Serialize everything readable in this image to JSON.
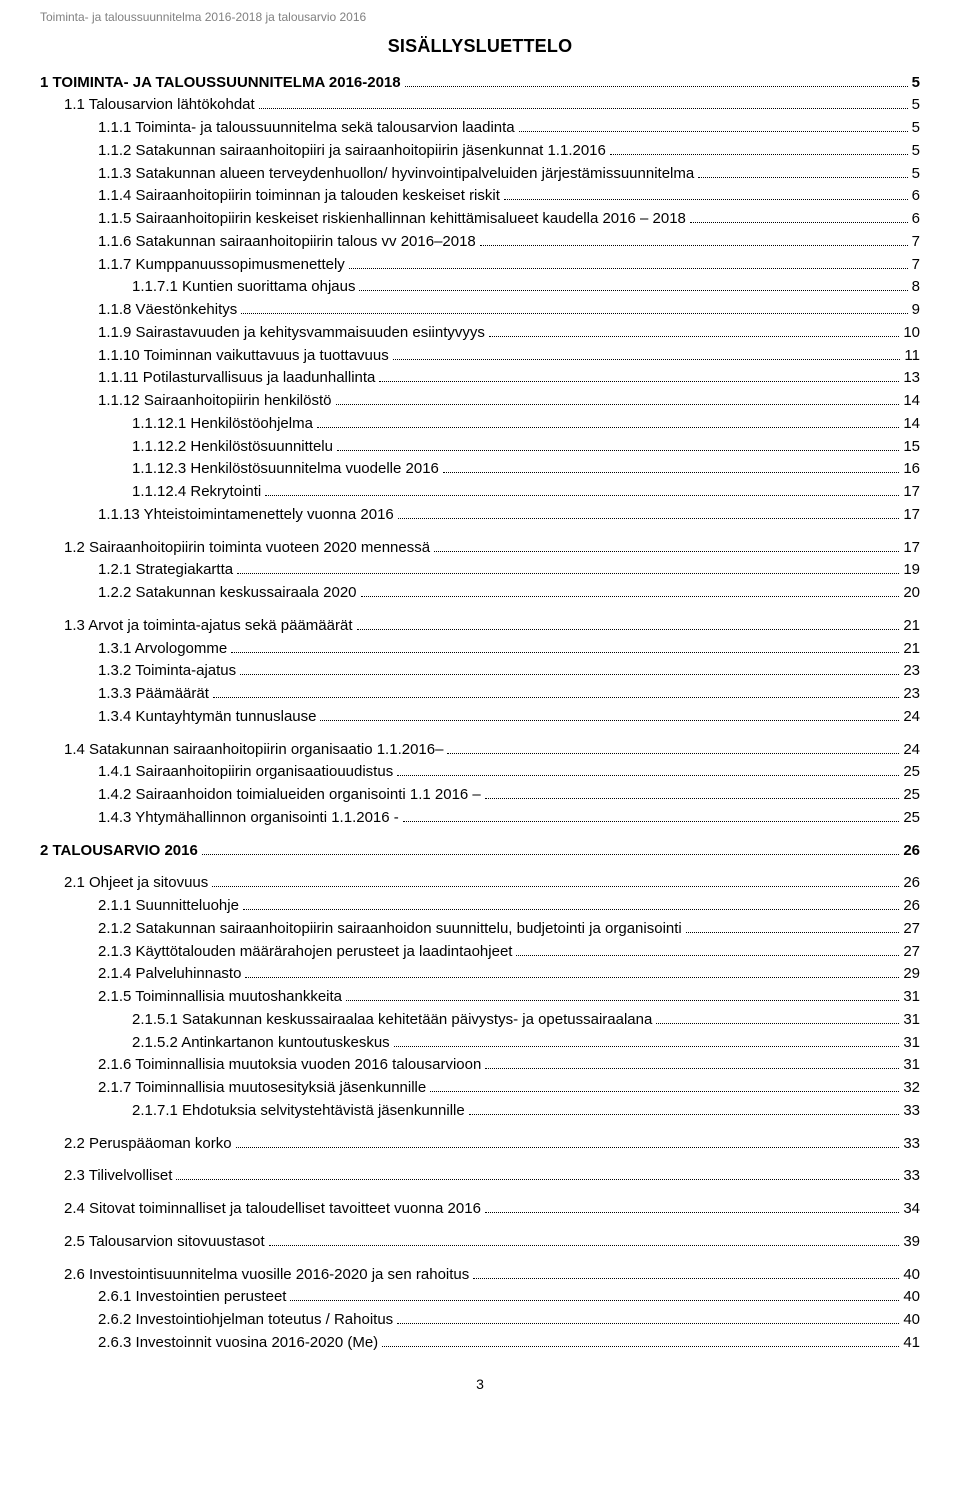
{
  "running_header": "Toiminta- ja taloussuunnitelma 2016-2018 ja talousarvio 2016",
  "doc_title": "SISÄLLYSLUETTELO",
  "page_number": "3",
  "toc": [
    {
      "num": "1",
      "title": "TOIMINTA- JA TALOUSSUUNNITELMA 2016-2018",
      "page": "5",
      "level": 0,
      "bold": true,
      "gap": false
    },
    {
      "num": "1.1",
      "title": "Talousarvion lähtökohdat",
      "page": "5",
      "level": 1,
      "bold": false,
      "gap": false
    },
    {
      "num": "1.1.1",
      "title": "Toiminta- ja taloussuunnitelma sekä talousarvion laadinta",
      "page": "5",
      "level": 2,
      "bold": false,
      "gap": false
    },
    {
      "num": "1.1.2",
      "title": "Satakunnan sairaanhoitopiiri ja sairaanhoitopiirin jäsenkunnat 1.1.2016",
      "page": "5",
      "level": 2,
      "bold": false,
      "gap": false
    },
    {
      "num": "1.1.3",
      "title": "Satakunnan alueen terveydenhuollon/ hyvinvointipalveluiden järjestämissuunnitelma",
      "page": "5",
      "level": 2,
      "bold": false,
      "gap": false
    },
    {
      "num": "1.1.4",
      "title": "Sairaanhoitopiirin toiminnan ja talouden keskeiset riskit",
      "page": "6",
      "level": 2,
      "bold": false,
      "gap": false
    },
    {
      "num": "1.1.5",
      "title": "Sairaanhoitopiirin keskeiset riskienhallinnan kehittämisalueet kaudella 2016 – 2018",
      "page": "6",
      "level": 2,
      "bold": false,
      "gap": false
    },
    {
      "num": "1.1.6",
      "title": "Satakunnan sairaanhoitopiirin talous vv 2016–2018",
      "page": "7",
      "level": 2,
      "bold": false,
      "gap": false
    },
    {
      "num": "1.1.7",
      "title": "Kumppanuussopimusmenettely",
      "page": "7",
      "level": 2,
      "bold": false,
      "gap": false
    },
    {
      "num": "1.1.7.1",
      "title": "Kuntien suorittama ohjaus",
      "page": "8",
      "level": 3,
      "bold": false,
      "gap": false
    },
    {
      "num": "1.1.8",
      "title": "Väestönkehitys",
      "page": "9",
      "level": 2,
      "bold": false,
      "gap": false
    },
    {
      "num": "1.1.9",
      "title": "Sairastavuuden ja kehitysvammaisuuden esiintyvyys",
      "page": "10",
      "level": 2,
      "bold": false,
      "gap": false
    },
    {
      "num": "1.1.10",
      "title": "Toiminnan vaikuttavuus ja tuottavuus",
      "page": "11",
      "level": 2,
      "bold": false,
      "gap": false
    },
    {
      "num": "1.1.11",
      "title": "Potilasturvallisuus ja laadunhallinta",
      "page": "13",
      "level": 2,
      "bold": false,
      "gap": false
    },
    {
      "num": "1.1.12",
      "title": "Sairaanhoitopiirin henkilöstö",
      "page": "14",
      "level": 2,
      "bold": false,
      "gap": false
    },
    {
      "num": "1.1.12.1",
      "title": "Henkilöstöohjelma",
      "page": "14",
      "level": 3,
      "bold": false,
      "gap": false
    },
    {
      "num": "1.1.12.2",
      "title": "Henkilöstösuunnittelu",
      "page": "15",
      "level": 3,
      "bold": false,
      "gap": false
    },
    {
      "num": "1.1.12.3",
      "title": "Henkilöstösuunnitelma vuodelle 2016",
      "page": "16",
      "level": 3,
      "bold": false,
      "gap": false
    },
    {
      "num": "1.1.12.4",
      "title": "Rekrytointi",
      "page": "17",
      "level": 3,
      "bold": false,
      "gap": false
    },
    {
      "num": "1.1.13",
      "title": "Yhteistoimintamenettely vuonna 2016",
      "page": "17",
      "level": 2,
      "bold": false,
      "gap": false
    },
    {
      "num": "1.2",
      "title": "Sairaanhoitopiirin toiminta vuoteen 2020 mennessä",
      "page": "17",
      "level": 1,
      "bold": false,
      "gap": true
    },
    {
      "num": "1.2.1",
      "title": "Strategiakartta",
      "page": "19",
      "level": 2,
      "bold": false,
      "gap": false
    },
    {
      "num": "1.2.2",
      "title": "Satakunnan keskussairaala 2020",
      "page": "20",
      "level": 2,
      "bold": false,
      "gap": false
    },
    {
      "num": "1.3",
      "title": "Arvot ja toiminta-ajatus sekä päämäärät",
      "page": "21",
      "level": 1,
      "bold": false,
      "gap": true
    },
    {
      "num": "1.3.1",
      "title": "Arvologomme",
      "page": "21",
      "level": 2,
      "bold": false,
      "gap": false
    },
    {
      "num": "1.3.2",
      "title": "Toiminta-ajatus",
      "page": "23",
      "level": 2,
      "bold": false,
      "gap": false
    },
    {
      "num": "1.3.3",
      "title": "Päämäärät",
      "page": "23",
      "level": 2,
      "bold": false,
      "gap": false
    },
    {
      "num": "1.3.4",
      "title": "Kuntayhtymän tunnuslause",
      "page": "24",
      "level": 2,
      "bold": false,
      "gap": false
    },
    {
      "num": "1.4",
      "title": "Satakunnan sairaanhoitopiirin organisaatio 1.1.2016–",
      "page": "24",
      "level": 1,
      "bold": false,
      "gap": true
    },
    {
      "num": "1.4.1",
      "title": "Sairaanhoitopiirin organisaatiouudistus",
      "page": "25",
      "level": 2,
      "bold": false,
      "gap": false
    },
    {
      "num": "1.4.2",
      "title": "Sairaanhoidon toimialueiden organisointi 1.1 2016 –",
      "page": "25",
      "level": 2,
      "bold": false,
      "gap": false
    },
    {
      "num": "1.4.3",
      "title": "Yhtymähallinnon organisointi 1.1.2016 -",
      "page": "25",
      "level": 2,
      "bold": false,
      "gap": false
    },
    {
      "num": "2",
      "title": "TALOUSARVIO 2016",
      "page": "26",
      "level": 0,
      "bold": true,
      "gap": true
    },
    {
      "num": "2.1",
      "title": "Ohjeet ja sitovuus",
      "page": "26",
      "level": 1,
      "bold": false,
      "gap": true
    },
    {
      "num": "2.1.1",
      "title": "Suunnitteluohje",
      "page": "26",
      "level": 2,
      "bold": false,
      "gap": false
    },
    {
      "num": "2.1.2",
      "title": "Satakunnan sairaanhoitopiirin sairaanhoidon suunnittelu, budjetointi ja organisointi",
      "page": "27",
      "level": 2,
      "bold": false,
      "gap": false
    },
    {
      "num": "2.1.3",
      "title": "Käyttötalouden määrärahojen perusteet ja laadintaohjeet",
      "page": "27",
      "level": 2,
      "bold": false,
      "gap": false
    },
    {
      "num": "2.1.4",
      "title": "Palveluhinnasto",
      "page": "29",
      "level": 2,
      "bold": false,
      "gap": false
    },
    {
      "num": "2.1.5",
      "title": "Toiminnallisia muutoshankkeita",
      "page": "31",
      "level": 2,
      "bold": false,
      "gap": false
    },
    {
      "num": "2.1.5.1",
      "title": "Satakunnan keskussairaalaa kehitetään päivystys- ja opetussairaalana",
      "page": "31",
      "level": 3,
      "bold": false,
      "gap": false
    },
    {
      "num": "2.1.5.2",
      "title": "Antinkartanon kuntoutuskeskus",
      "page": "31",
      "level": 3,
      "bold": false,
      "gap": false
    },
    {
      "num": "2.1.6",
      "title": "Toiminnallisia muutoksia vuoden 2016 talousarvioon",
      "page": "31",
      "level": 2,
      "bold": false,
      "gap": false
    },
    {
      "num": "2.1.7",
      "title": "Toiminnallisia muutosesityksiä jäsenkunnille",
      "page": "32",
      "level": 2,
      "bold": false,
      "gap": false
    },
    {
      "num": "2.1.7.1",
      "title": "Ehdotuksia selvitystehtävistä jäsenkunnille",
      "page": "33",
      "level": 3,
      "bold": false,
      "gap": false
    },
    {
      "num": "2.2",
      "title": "Peruspääoman korko",
      "page": "33",
      "level": 1,
      "bold": false,
      "gap": true
    },
    {
      "num": "2.3",
      "title": "Tilivelvolliset",
      "page": "33",
      "level": 1,
      "bold": false,
      "gap": true
    },
    {
      "num": "2.4",
      "title": "Sitovat toiminnalliset ja taloudelliset tavoitteet vuonna 2016",
      "page": "34",
      "level": 1,
      "bold": false,
      "gap": true
    },
    {
      "num": "2.5",
      "title": "Talousarvion sitovuustasot",
      "page": "39",
      "level": 1,
      "bold": false,
      "gap": true
    },
    {
      "num": "2.6",
      "title": "Investointisuunnitelma vuosille 2016-2020 ja sen rahoitus",
      "page": "40",
      "level": 1,
      "bold": false,
      "gap": true
    },
    {
      "num": "2.6.1",
      "title": "Investointien perusteet",
      "page": "40",
      "level": 2,
      "bold": false,
      "gap": false
    },
    {
      "num": "2.6.2",
      "title": "Investointiohjelman toteutus / Rahoitus",
      "page": "40",
      "level": 2,
      "bold": false,
      "gap": false
    },
    {
      "num": "2.6.3",
      "title": "Investoinnit vuosina 2016-2020 (Me)",
      "page": "41",
      "level": 2,
      "bold": false,
      "gap": false
    }
  ]
}
